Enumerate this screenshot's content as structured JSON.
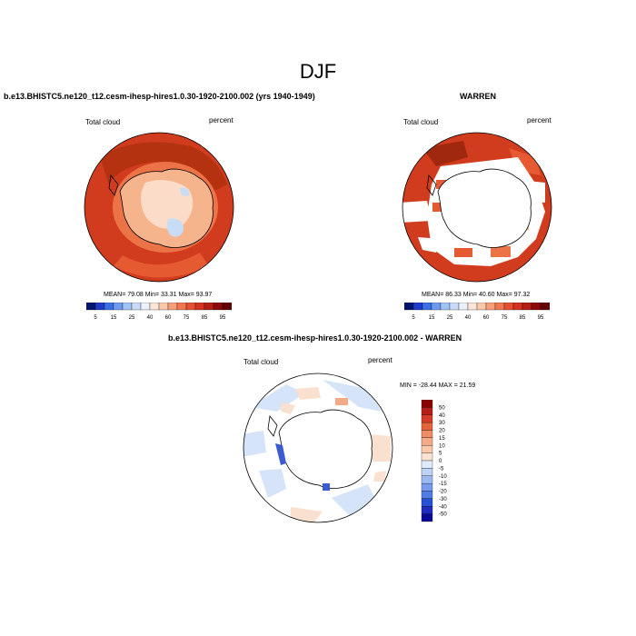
{
  "page": {
    "title": "DJF"
  },
  "panels": [
    {
      "title": "b.e13.BHISTC5.ne120_t12.cesm-ihesp-hires1.0.30-1920-2100.002 (yrs 1940-1949)",
      "left_label": "Total cloud",
      "right_label": "percent",
      "stats": "MEAN=  79.08  Min=  33.31  Max=  93.97",
      "colorbar_ticks": [
        "5",
        "15",
        "25",
        "40",
        "60",
        "75",
        "85",
        "95"
      ],
      "colorbar_colors": [
        "#05146e",
        "#1e3cc8",
        "#3c6ee6",
        "#6e9bf0",
        "#a0c3f5",
        "#c8dcfa",
        "#ebf0fa",
        "#fae6d7",
        "#fac8aa",
        "#f5a078",
        "#f07850",
        "#e65032",
        "#d2321e",
        "#b41e14",
        "#8c0a0a",
        "#640000"
      ]
    },
    {
      "title": "WARREN",
      "left_label": "Total cloud",
      "right_label": "percent",
      "stats": "MEAN=  86.33  Min=  40.60  Max=  97.32",
      "colorbar_ticks": [
        "5",
        "15",
        "25",
        "40",
        "60",
        "75",
        "85",
        "95"
      ],
      "colorbar_colors": [
        "#05146e",
        "#1e3cc8",
        "#3c6ee6",
        "#6e9bf0",
        "#a0c3f5",
        "#c8dcfa",
        "#ebf0fa",
        "#fae6d7",
        "#fac8aa",
        "#f5a078",
        "#f07850",
        "#e65032",
        "#d2321e",
        "#b41e14",
        "#8c0a0a",
        "#640000"
      ]
    },
    {
      "title": "b.e13.BHISTC5.ne120_t12.cesm-ihesp-hires1.0.30-1920-2100.002 - WARREN",
      "left_label": "Total cloud",
      "right_label": "percent",
      "stats": "MIN = -28.44  MAX =  21.59",
      "colorbar_ticks": [
        "50",
        "40",
        "30",
        "20",
        "15",
        "10",
        "5",
        "0",
        "-5",
        "-10",
        "-15",
        "-20",
        "-30",
        "-40",
        "-50"
      ],
      "colorbar_colors": [
        "#8c0000",
        "#b41e14",
        "#d23c28",
        "#e6643c",
        "#f08c64",
        "#f5aa87",
        "#fac8aa",
        "#fbe3d3",
        "#dfebfa",
        "#bed2f5",
        "#9bb9f0",
        "#789bf0",
        "#507de6",
        "#2850d7",
        "#1e2dbe",
        "#0a0a96"
      ]
    }
  ],
  "map_colors": {
    "ocean_high": "#d23c1e",
    "ocean_mid": "#e65a32",
    "ocean_dark": "#a0280f",
    "land_low": "#f5b48c",
    "land_lowest": "#fadcc8",
    "land_blue": "#c8dcf5",
    "missing": "#ffffff",
    "diff_pos": "#fae0cf",
    "diff_neg": "#d5e4f8",
    "diff_strong_neg": "#3c5ad2"
  }
}
